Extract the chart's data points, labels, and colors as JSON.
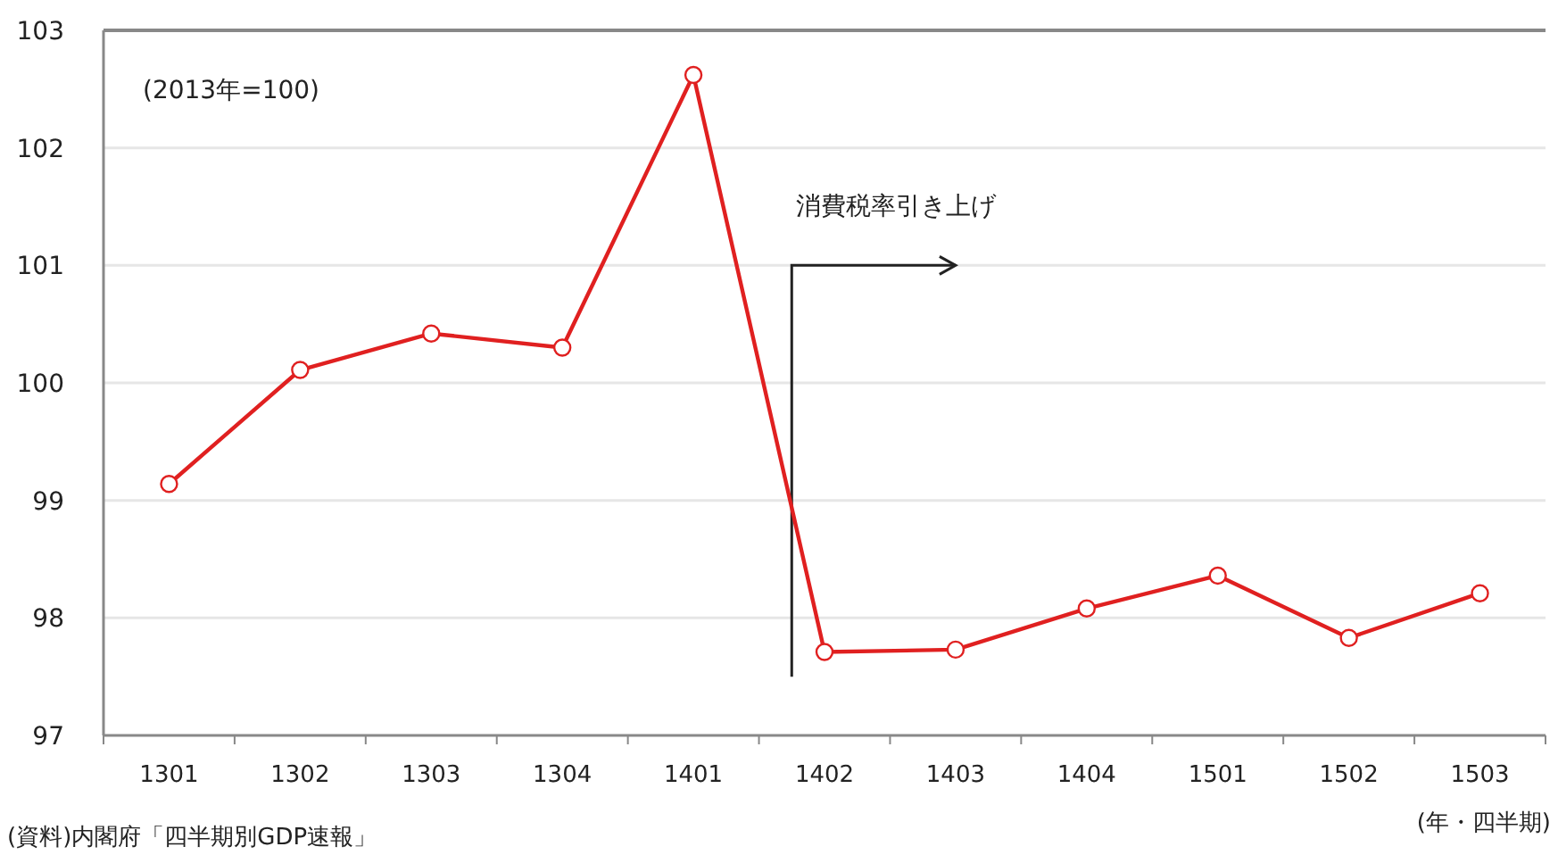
{
  "chart_data": {
    "type": "line",
    "categories": [
      "1301",
      "1302",
      "1303",
      "1304",
      "1401",
      "1402",
      "1403",
      "1404",
      "1501",
      "1502",
      "1503"
    ],
    "series": [
      {
        "color": "#e02020",
        "values": [
          99.14,
          100.11,
          100.42,
          100.3,
          102.62,
          97.71,
          97.73,
          98.08,
          98.36,
          97.83,
          98.21
        ]
      }
    ],
    "ylim": [
      97,
      103
    ],
    "yticks": [
      97,
      98,
      99,
      100,
      101,
      102,
      103
    ],
    "xlabel": "(年・四半期)",
    "annotations": [
      "(2013年=100)",
      "消費税率引き上げ",
      "(資料)内閣府「四半期別GDP速報」"
    ],
    "grid": "y",
    "marker": "circle",
    "line_style": "solid"
  }
}
